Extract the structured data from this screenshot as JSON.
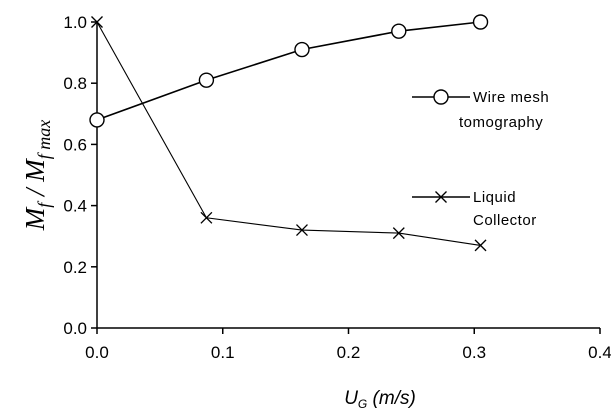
{
  "chart_data": {
    "type": "line",
    "title": "",
    "xlabel": "U_G (m/s)",
    "ylabel": "M_f / M_f max",
    "xlim": [
      0.0,
      0.4
    ],
    "ylim": [
      0.0,
      1.0
    ],
    "xticks": [
      "0.0",
      "0.1",
      "0.2",
      "0.3",
      "0.4"
    ],
    "yticks": [
      "0.0",
      "0.2",
      "0.4",
      "0.6",
      "0.8",
      "1.0"
    ],
    "grid": false,
    "legend_position": "right",
    "series": [
      {
        "name": "Wire mesh tomography",
        "label_lines": [
          "Wire mesh",
          "tomography"
        ],
        "marker": "circle",
        "x": [
          0.0,
          0.087,
          0.163,
          0.24,
          0.305
        ],
        "y": [
          0.68,
          0.81,
          0.91,
          0.97,
          1.0
        ]
      },
      {
        "name": "Liquid Collector",
        "label_lines": [
          "Liquid",
          "Collector"
        ],
        "marker": "x",
        "x": [
          0.0,
          0.087,
          0.163,
          0.24,
          0.305
        ],
        "y": [
          1.0,
          0.36,
          0.32,
          0.31,
          0.27
        ]
      }
    ]
  }
}
